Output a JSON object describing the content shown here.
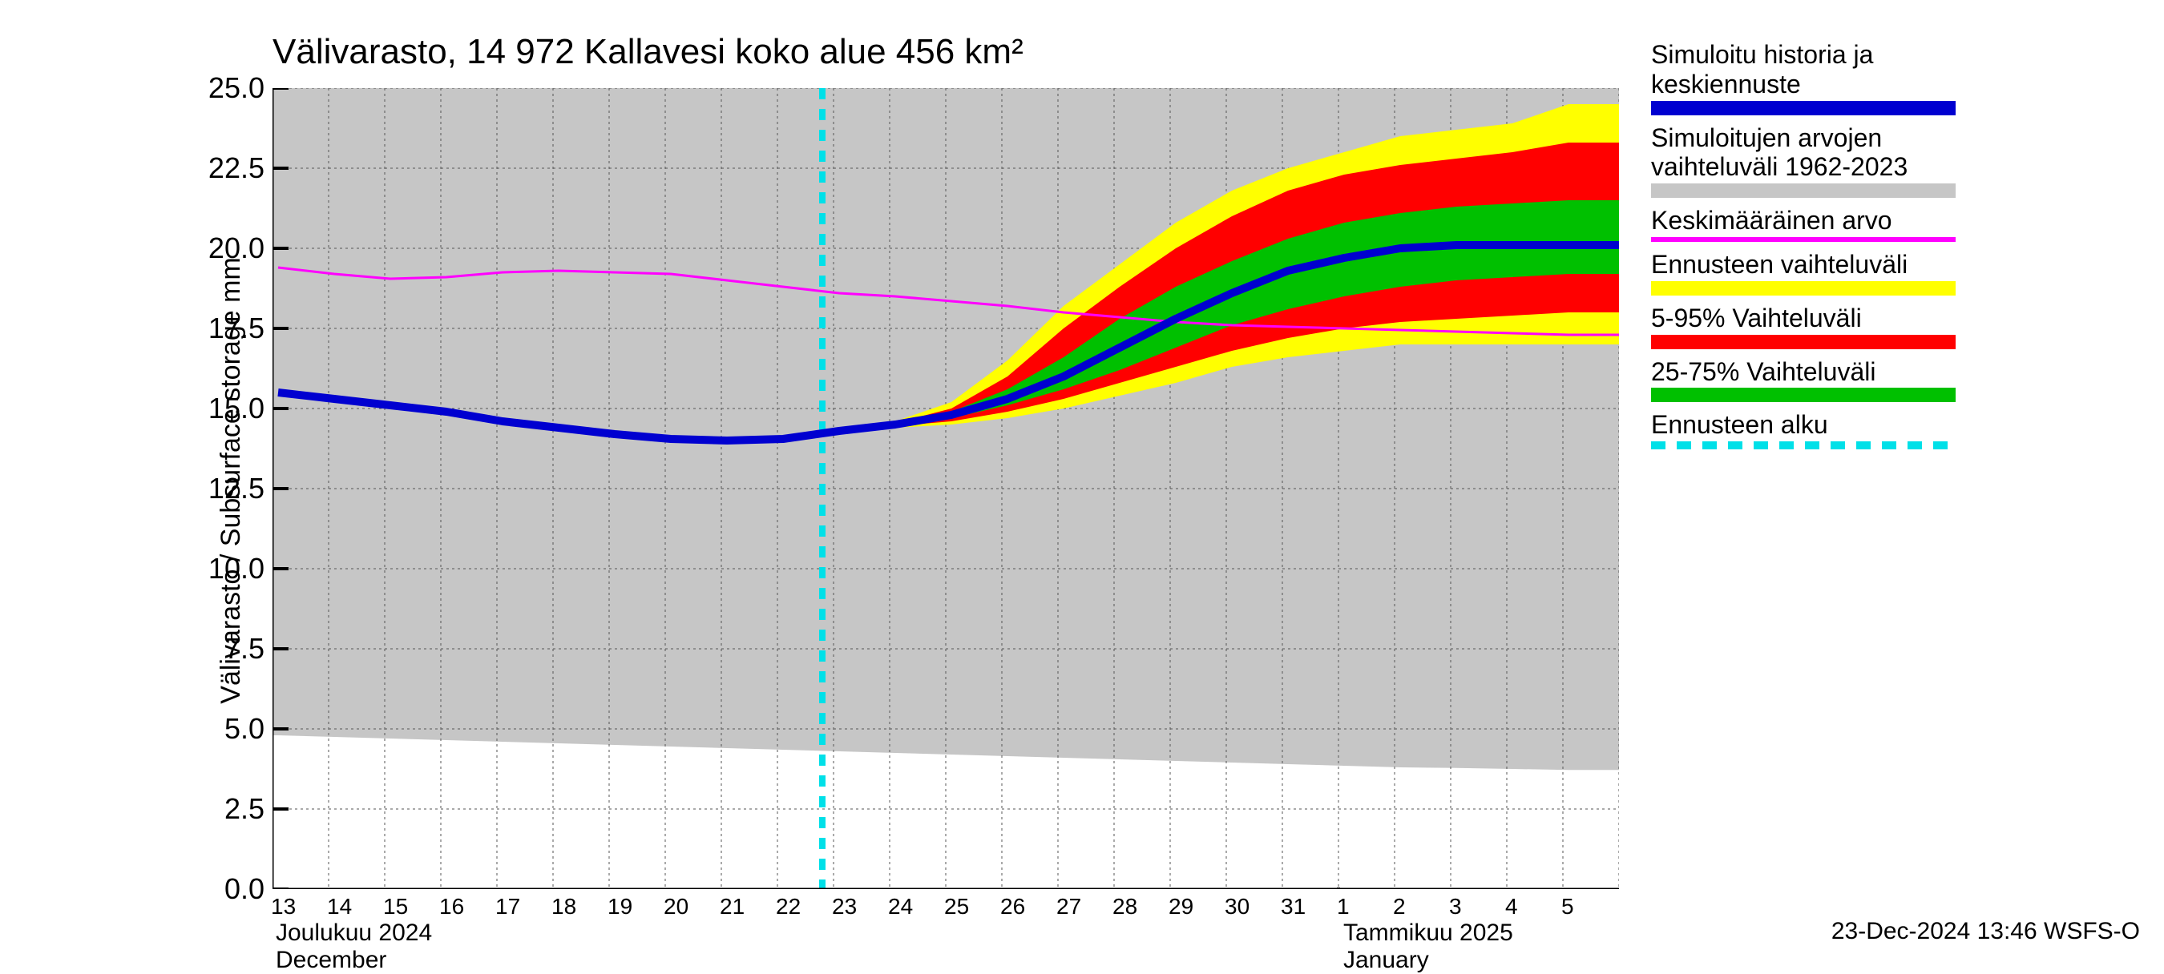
{
  "chart": {
    "type": "area_line_forecast",
    "title": "Välivarasto, 14 972 Kallavesi koko alue 456 km²",
    "ylabel": "Välivarasto / Subsurface storage  mm",
    "footer": "23-Dec-2024 13:46 WSFS-O",
    "background_color": "#ffffff",
    "grid_major_color": "#000000",
    "grid_minor_color": "#808080",
    "grid_dash": "3,4",
    "y_axis": {
      "min": 0.0,
      "max": 25.0,
      "step": 2.5,
      "tick_labels": [
        "0.0",
        "2.5",
        "5.0",
        "7.5",
        "10.0",
        "12.5",
        "15.0",
        "17.5",
        "20.0",
        "22.5",
        "25.0"
      ]
    },
    "x_axis": {
      "day_labels": [
        "13",
        "14",
        "15",
        "16",
        "17",
        "18",
        "19",
        "20",
        "21",
        "22",
        "23",
        "24",
        "25",
        "26",
        "27",
        "28",
        "29",
        "30",
        "31",
        "1",
        "2",
        "3",
        "4",
        "5"
      ],
      "month_labels_left": [
        "Joulukuu  2024",
        "December"
      ],
      "month_labels_right": [
        "Tammikuu  2025",
        "January"
      ],
      "month_divider_index": 19
    },
    "forecast_start_index": 10,
    "forecast_start_color": "#00e0e8",
    "bands": {
      "history_range": {
        "color": "#c6c6c6",
        "upper": [
          25,
          25,
          25,
          25,
          25,
          25,
          25,
          25,
          25,
          25,
          25,
          25,
          25,
          25,
          25,
          25,
          25,
          25,
          25,
          25,
          25,
          25,
          25,
          25
        ],
        "lower": [
          4.8,
          4.75,
          4.7,
          4.65,
          4.6,
          4.55,
          4.5,
          4.45,
          4.4,
          4.35,
          4.3,
          4.25,
          4.2,
          4.15,
          4.1,
          4.05,
          4.0,
          3.95,
          3.9,
          3.85,
          3.8,
          3.78,
          3.75,
          3.72
        ]
      },
      "forecast_outer": {
        "color": "#ffff00",
        "upper": [
          null,
          null,
          null,
          null,
          null,
          null,
          null,
          null,
          null,
          null,
          14.3,
          14.6,
          15.2,
          16.5,
          18.2,
          19.5,
          20.8,
          21.8,
          22.5,
          23.0,
          23.5,
          23.7,
          23.9,
          24.5
        ],
        "lower": [
          null,
          null,
          null,
          null,
          null,
          null,
          null,
          null,
          null,
          null,
          14.3,
          14.4,
          14.5,
          14.7,
          15.0,
          15.4,
          15.8,
          16.3,
          16.6,
          16.8,
          17.0,
          17.0,
          17.0,
          17.0
        ]
      },
      "forecast_5_95": {
        "color": "#ff0000",
        "upper": [
          null,
          null,
          null,
          null,
          null,
          null,
          null,
          null,
          null,
          null,
          14.3,
          14.55,
          15.0,
          16.0,
          17.5,
          18.8,
          20.0,
          21.0,
          21.8,
          22.3,
          22.6,
          22.8,
          23.0,
          23.3
        ],
        "lower": [
          null,
          null,
          null,
          null,
          null,
          null,
          null,
          null,
          null,
          null,
          14.3,
          14.45,
          14.6,
          14.9,
          15.3,
          15.8,
          16.3,
          16.8,
          17.2,
          17.5,
          17.7,
          17.8,
          17.9,
          18.0
        ]
      },
      "forecast_25_75": {
        "color": "#00c000",
        "upper": [
          null,
          null,
          null,
          null,
          null,
          null,
          null,
          null,
          null,
          null,
          14.3,
          14.5,
          14.9,
          15.6,
          16.6,
          17.8,
          18.8,
          19.6,
          20.3,
          20.8,
          21.1,
          21.3,
          21.4,
          21.5
        ],
        "lower": [
          null,
          null,
          null,
          null,
          null,
          null,
          null,
          null,
          null,
          null,
          14.3,
          14.5,
          14.7,
          15.1,
          15.6,
          16.2,
          16.9,
          17.6,
          18.1,
          18.5,
          18.8,
          19.0,
          19.1,
          19.2
        ]
      }
    },
    "lines": {
      "median": {
        "color": "#0000d0",
        "width": 10,
        "values": [
          15.5,
          15.3,
          15.1,
          14.9,
          14.6,
          14.4,
          14.2,
          14.05,
          14.0,
          14.05,
          14.3,
          14.5,
          14.8,
          15.3,
          16.0,
          16.9,
          17.8,
          18.6,
          19.3,
          19.7,
          20.0,
          20.1,
          20.1,
          20.1
        ]
      },
      "mean": {
        "color": "#ff00ff",
        "width": 3,
        "values": [
          19.4,
          19.2,
          19.05,
          19.1,
          19.25,
          19.3,
          19.25,
          19.2,
          19.0,
          18.8,
          18.6,
          18.5,
          18.35,
          18.2,
          18.0,
          17.85,
          17.7,
          17.6,
          17.55,
          17.5,
          17.45,
          17.4,
          17.35,
          17.3
        ]
      }
    }
  },
  "legend": {
    "items": [
      {
        "lines": [
          "Simuloitu historia ja",
          "keskiennuste"
        ],
        "color": "#0000d0",
        "height": 18
      },
      {
        "lines": [
          "Simuloitujen arvojen",
          "vaihteluväli 1962-2023"
        ],
        "color": "#c6c6c6",
        "height": 18
      },
      {
        "lines": [
          "Keskimääräinen arvo"
        ],
        "color": "#ff00ff",
        "height": 6
      },
      {
        "lines": [
          "Ennusteen vaihteluväli"
        ],
        "color": "#ffff00",
        "height": 18
      },
      {
        "lines": [
          "5-95% Vaihteluväli"
        ],
        "color": "#ff0000",
        "height": 18
      },
      {
        "lines": [
          "25-75% Vaihteluväli"
        ],
        "color": "#00c000",
        "height": 18
      },
      {
        "lines": [
          "Ennusteen alku"
        ],
        "color": "#00e0e8",
        "dashed": true
      }
    ]
  }
}
